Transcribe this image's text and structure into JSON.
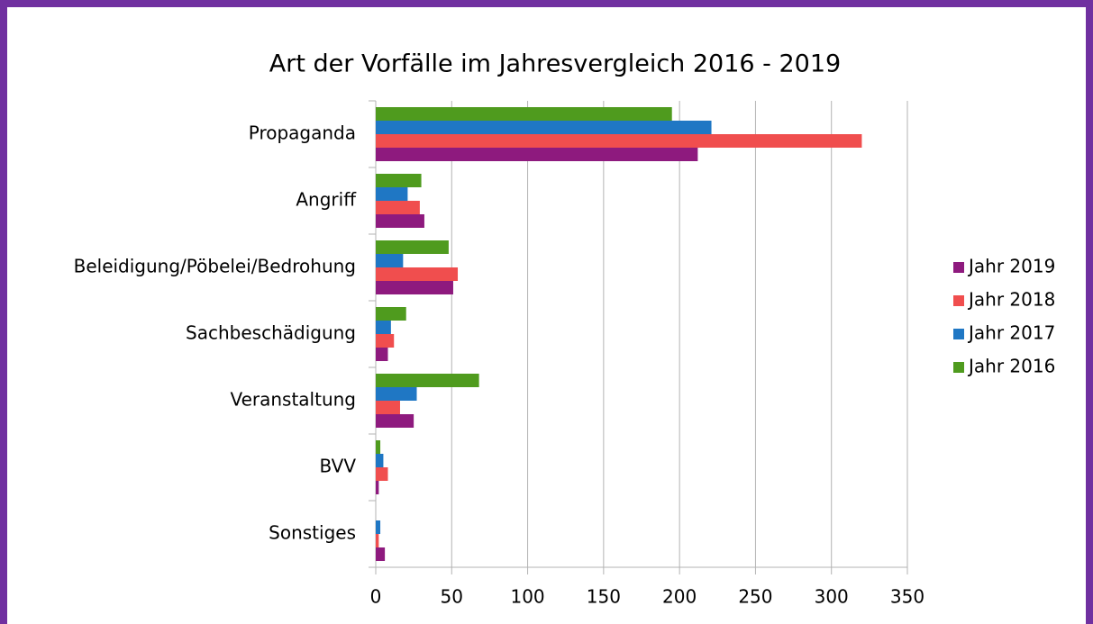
{
  "chart_data": {
    "type": "bar",
    "orientation": "horizontal",
    "title": "Art der Vorfälle im Jahresvergleich 2016 - 2019",
    "categories": [
      "Propaganda",
      "Angriff",
      "Beleidigung/Pöbelei/Bedrohung",
      "Sachbeschädigung",
      "Veranstaltung",
      "BVV",
      "Sonstiges"
    ],
    "series": [
      {
        "name": "Jahr 2019",
        "color": "#8e1a7e",
        "values": [
          212,
          32,
          51,
          8,
          25,
          2,
          6
        ]
      },
      {
        "name": "Jahr 2018",
        "color": "#f04e4e",
        "values": [
          320,
          29,
          54,
          12,
          16,
          8,
          2
        ]
      },
      {
        "name": "Jahr 2017",
        "color": "#1f77c4",
        "values": [
          221,
          21,
          18,
          10,
          27,
          5,
          3
        ]
      },
      {
        "name": "Jahr 2016",
        "color": "#4f9b1e",
        "values": [
          195,
          30,
          48,
          20,
          68,
          3,
          0
        ]
      }
    ],
    "xlim": [
      0,
      350
    ],
    "xticks": [
      0,
      50,
      100,
      150,
      200,
      250,
      300,
      350
    ],
    "grid": true,
    "legend": "right"
  }
}
